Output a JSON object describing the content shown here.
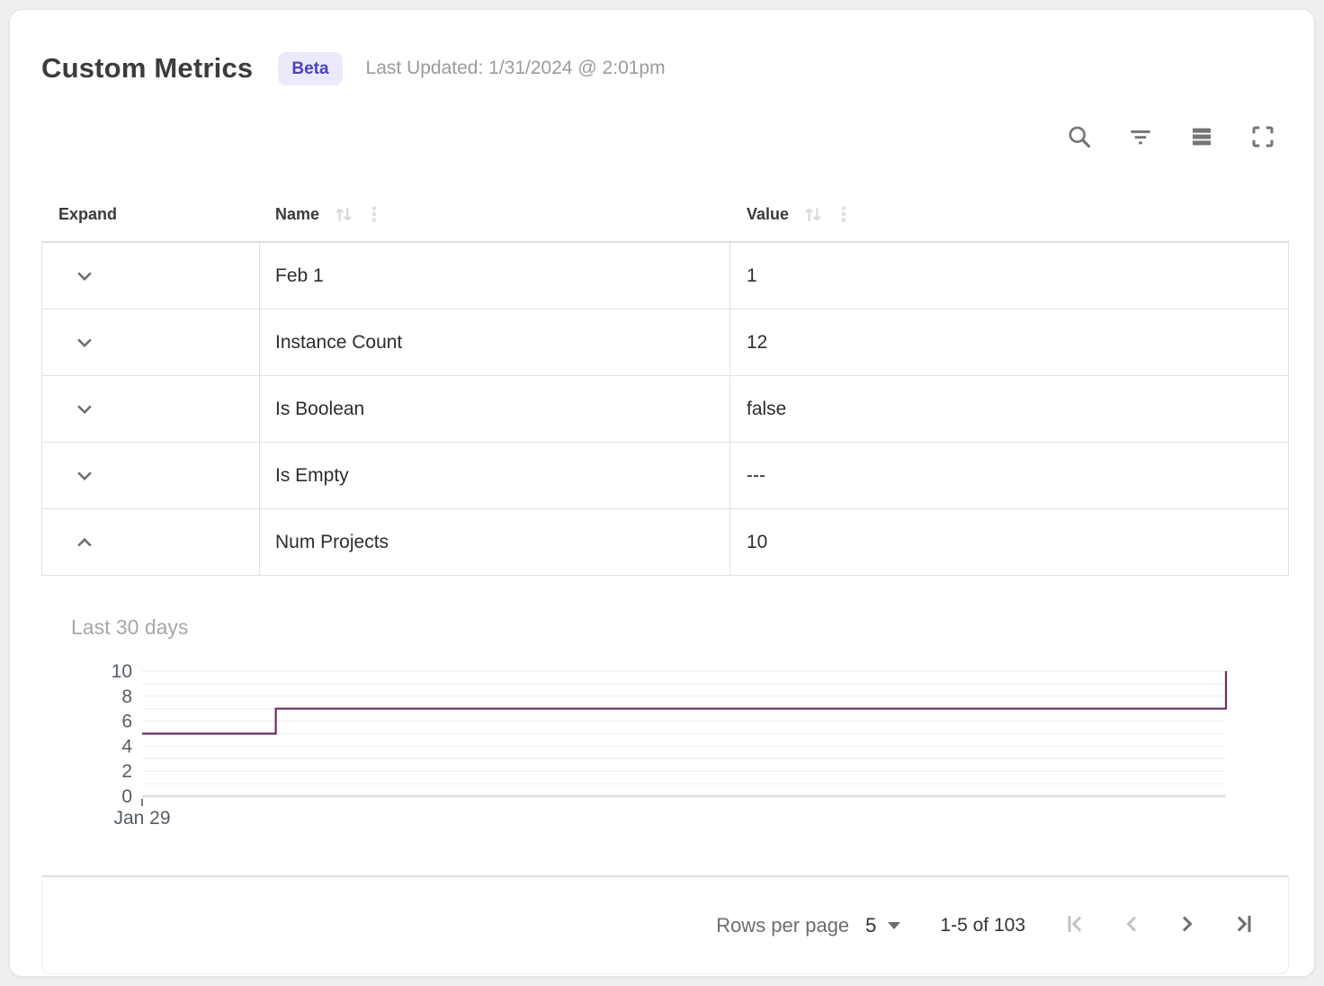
{
  "header": {
    "title": "Custom Metrics",
    "badge": "Beta",
    "last_updated": "Last Updated: 1/31/2024 @ 2:01pm"
  },
  "toolbar": {
    "icons": [
      "search-icon",
      "filter-icon",
      "density-icon",
      "fullscreen-icon"
    ]
  },
  "table": {
    "columns": [
      {
        "label": "Expand",
        "sortable": false
      },
      {
        "label": "Name",
        "sortable": true
      },
      {
        "label": "Value",
        "sortable": true
      }
    ],
    "rows": [
      {
        "name": "Feb 1",
        "value": "1",
        "expanded": false
      },
      {
        "name": "Instance Count",
        "value": "12",
        "expanded": false
      },
      {
        "name": "Is Boolean",
        "value": "false",
        "expanded": false
      },
      {
        "name": "Is Empty",
        "value": "---",
        "expanded": false
      },
      {
        "name": "Num Projects",
        "value": "10",
        "expanded": true
      }
    ]
  },
  "detail_panel": {
    "title": "Last 30 days"
  },
  "chart_data": {
    "type": "line",
    "step": "after",
    "title": "Last 30 days",
    "xlabel": "",
    "ylabel": "",
    "x_range_days": 30,
    "x_tick_labels": [
      "Jan 29"
    ],
    "ylim": [
      0,
      10
    ],
    "yticks": [
      0,
      2,
      4,
      6,
      8,
      10
    ],
    "grid": "horizontal-every-1",
    "legend": "none",
    "series": [
      {
        "name": "Num Projects",
        "color": "#6b2f63",
        "points": [
          {
            "x": 0,
            "y": 5
          },
          {
            "x": 3.7,
            "y": 7
          },
          {
            "x": 30,
            "y": 10
          }
        ]
      }
    ]
  },
  "footer": {
    "rows_per_page_label": "Rows per page",
    "rows_per_page_value": "5",
    "range_label": "1-5 of 103",
    "pagination": {
      "first_enabled": false,
      "prev_enabled": false,
      "next_enabled": true,
      "last_enabled": true
    }
  },
  "colors": {
    "accent_badge_bg": "#ebeafb",
    "accent_badge_text": "#4a44bc",
    "chart_line": "#6b2f63"
  }
}
